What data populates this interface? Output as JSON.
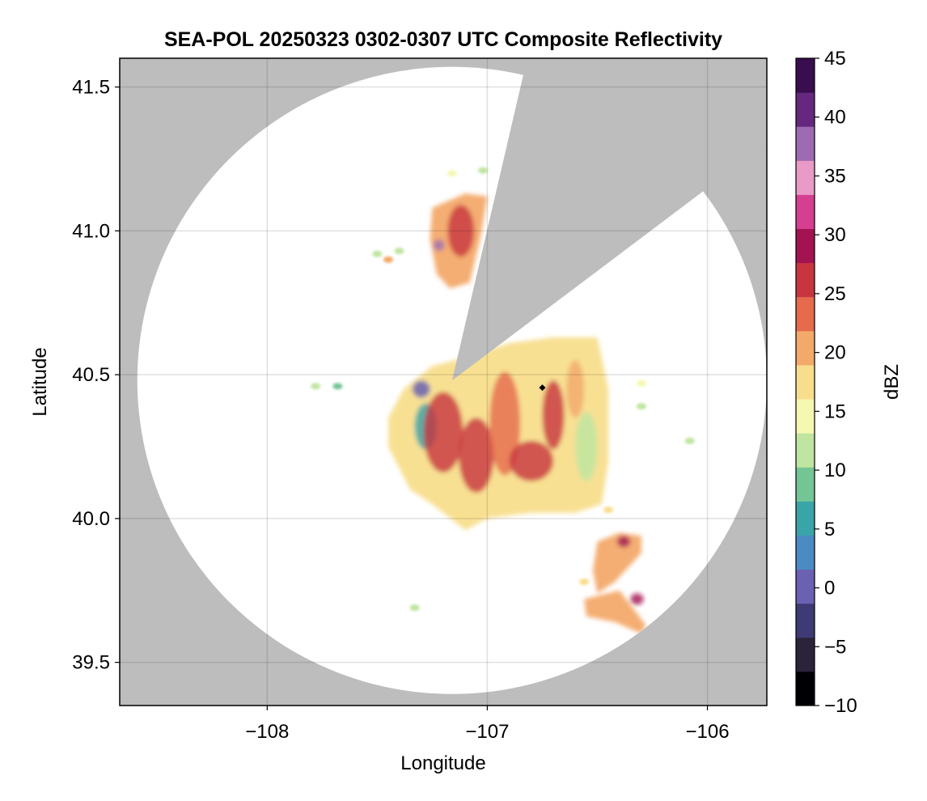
{
  "chart_data": {
    "type": "heatmap",
    "title": "SEA-POL 20250323 0302-0307 UTC Composite Reflectivity",
    "xlabel": "Longitude",
    "ylabel": "Latitude",
    "xlim": [
      -108.67,
      -105.73
    ],
    "ylim": [
      39.35,
      41.6
    ],
    "x_ticks": [
      -108,
      -107,
      -106
    ],
    "x_tick_labels": [
      "−108",
      "−107",
      "−106"
    ],
    "y_ticks": [
      39.5,
      40.0,
      40.5,
      41.0,
      41.5
    ],
    "y_tick_labels": [
      "39.5",
      "40.0",
      "40.5",
      "41.0",
      "41.5"
    ],
    "grid": true,
    "no_data_color": "#bdbdbd",
    "radar": {
      "lon": -107.16,
      "lat": 40.48,
      "range_deg_lon": 1.43,
      "range_deg_lat": 1.09,
      "blocked_sector_lon_lat": [
        [
          -107.16,
          40.48
        ],
        [
          -106.84,
          41.53
        ],
        [
          -106.05,
          41.12
        ]
      ]
    },
    "marker": {
      "lon": -106.75,
      "lat": 40.455
    },
    "colorbar": {
      "label": "dBZ",
      "min": -10,
      "max": 45,
      "ticks": [
        -10,
        -5,
        0,
        5,
        10,
        15,
        20,
        25,
        30,
        35,
        40,
        45
      ],
      "tick_labels": [
        "−10",
        "−5",
        "0",
        "5",
        "10",
        "15",
        "20",
        "25",
        "30",
        "35",
        "40",
        "45"
      ],
      "colormap": [
        "#000004",
        "#2a2339",
        "#3e3a75",
        "#6a61b2",
        "#4a8bc4",
        "#3aa5a8",
        "#74c594",
        "#bfe5a0",
        "#f4f8b0",
        "#f8de8c",
        "#f3a96a",
        "#e66a4c",
        "#c8353f",
        "#a31352",
        "#d63f8f",
        "#e99ac7",
        "#9e6bb3",
        "#66287e",
        "#3a0d4f"
      ]
    },
    "echo_regions": [
      {
        "name": "main",
        "polygon": [
          [
            -107.38,
            40.45
          ],
          [
            -107.25,
            40.53
          ],
          [
            -107.1,
            40.56
          ],
          [
            -106.9,
            40.61
          ],
          [
            -106.7,
            40.63
          ],
          [
            -106.5,
            40.63
          ],
          [
            -106.45,
            40.45
          ],
          [
            -106.45,
            40.2
          ],
          [
            -106.48,
            40.05
          ],
          [
            -106.6,
            40.02
          ],
          [
            -106.8,
            40.02
          ],
          [
            -107.0,
            40.0
          ],
          [
            -107.1,
            39.96
          ],
          [
            -107.25,
            40.05
          ],
          [
            -107.35,
            40.1
          ],
          [
            -107.45,
            40.25
          ],
          [
            -107.45,
            40.35
          ]
        ],
        "dbz": 17
      },
      {
        "name": "north",
        "polygon": [
          [
            -107.25,
            41.08
          ],
          [
            -107.1,
            41.13
          ],
          [
            -107.0,
            41.12
          ],
          [
            -107.03,
            40.98
          ],
          [
            -107.08,
            40.82
          ],
          [
            -107.17,
            40.8
          ],
          [
            -107.23,
            40.85
          ],
          [
            -107.26,
            40.97
          ]
        ],
        "dbz": 22
      },
      {
        "name": "southeast-1",
        "polygon": [
          [
            -106.5,
            39.92
          ],
          [
            -106.4,
            39.95
          ],
          [
            -106.3,
            39.94
          ],
          [
            -106.3,
            39.88
          ],
          [
            -106.42,
            39.78
          ],
          [
            -106.5,
            39.74
          ],
          [
            -106.52,
            39.82
          ]
        ],
        "dbz": 20
      },
      {
        "name": "southeast-2",
        "polygon": [
          [
            -106.56,
            39.72
          ],
          [
            -106.4,
            39.75
          ],
          [
            -106.35,
            39.7
          ],
          [
            -106.28,
            39.63
          ],
          [
            -106.3,
            39.6
          ],
          [
            -106.42,
            39.64
          ],
          [
            -106.55,
            39.66
          ]
        ],
        "dbz": 21
      }
    ],
    "cores": [
      {
        "lon": -107.2,
        "lat": 40.3,
        "rx": 0.09,
        "ry": 0.14,
        "dbz": 26
      },
      {
        "lon": -107.05,
        "lat": 40.22,
        "rx": 0.08,
        "ry": 0.13,
        "dbz": 27
      },
      {
        "lon": -106.92,
        "lat": 40.33,
        "rx": 0.07,
        "ry": 0.18,
        "dbz": 25
      },
      {
        "lon": -106.8,
        "lat": 40.2,
        "rx": 0.1,
        "ry": 0.07,
        "dbz": 28
      },
      {
        "lon": -106.7,
        "lat": 40.36,
        "rx": 0.05,
        "ry": 0.12,
        "dbz": 26
      },
      {
        "lon": -106.6,
        "lat": 40.45,
        "rx": 0.04,
        "ry": 0.1,
        "dbz": 22
      },
      {
        "lon": -107.12,
        "lat": 41.0,
        "rx": 0.06,
        "ry": 0.09,
        "dbz": 28
      },
      {
        "lon": -107.22,
        "lat": 40.95,
        "rx": 0.025,
        "ry": 0.02,
        "dbz": 38
      },
      {
        "lon": -106.38,
        "lat": 39.92,
        "rx": 0.03,
        "ry": 0.02,
        "dbz": 31
      },
      {
        "lon": -106.32,
        "lat": 39.72,
        "rx": 0.03,
        "ry": 0.02,
        "dbz": 30
      }
    ],
    "weak_regions": [
      {
        "lon": -106.55,
        "lat": 40.25,
        "rx": 0.05,
        "ry": 0.12,
        "dbz": 10
      },
      {
        "lon": -107.28,
        "lat": 40.32,
        "rx": 0.05,
        "ry": 0.08,
        "dbz": 5
      },
      {
        "lon": -107.3,
        "lat": 40.45,
        "rx": 0.04,
        "ry": 0.03,
        "dbz": 0
      }
    ],
    "speckles": [
      {
        "lon": -107.45,
        "lat": 40.9,
        "dbz": 20
      },
      {
        "lon": -107.4,
        "lat": 40.93,
        "dbz": 12
      },
      {
        "lon": -107.5,
        "lat": 40.92,
        "dbz": 10
      },
      {
        "lon": -107.78,
        "lat": 40.46,
        "dbz": 10
      },
      {
        "lon": -107.68,
        "lat": 40.46,
        "dbz": 8
      },
      {
        "lon": -107.33,
        "lat": 39.69,
        "dbz": 10
      },
      {
        "lon": -107.16,
        "lat": 41.2,
        "dbz": 15
      },
      {
        "lon": -107.02,
        "lat": 41.21,
        "dbz": 10
      },
      {
        "lon": -106.3,
        "lat": 40.47,
        "dbz": 14
      },
      {
        "lon": -106.3,
        "lat": 40.39,
        "dbz": 12
      },
      {
        "lon": -106.08,
        "lat": 40.27,
        "dbz": 12
      },
      {
        "lon": -106.45,
        "lat": 40.03,
        "dbz": 18
      },
      {
        "lon": -106.56,
        "lat": 39.78,
        "dbz": 19
      }
    ]
  }
}
